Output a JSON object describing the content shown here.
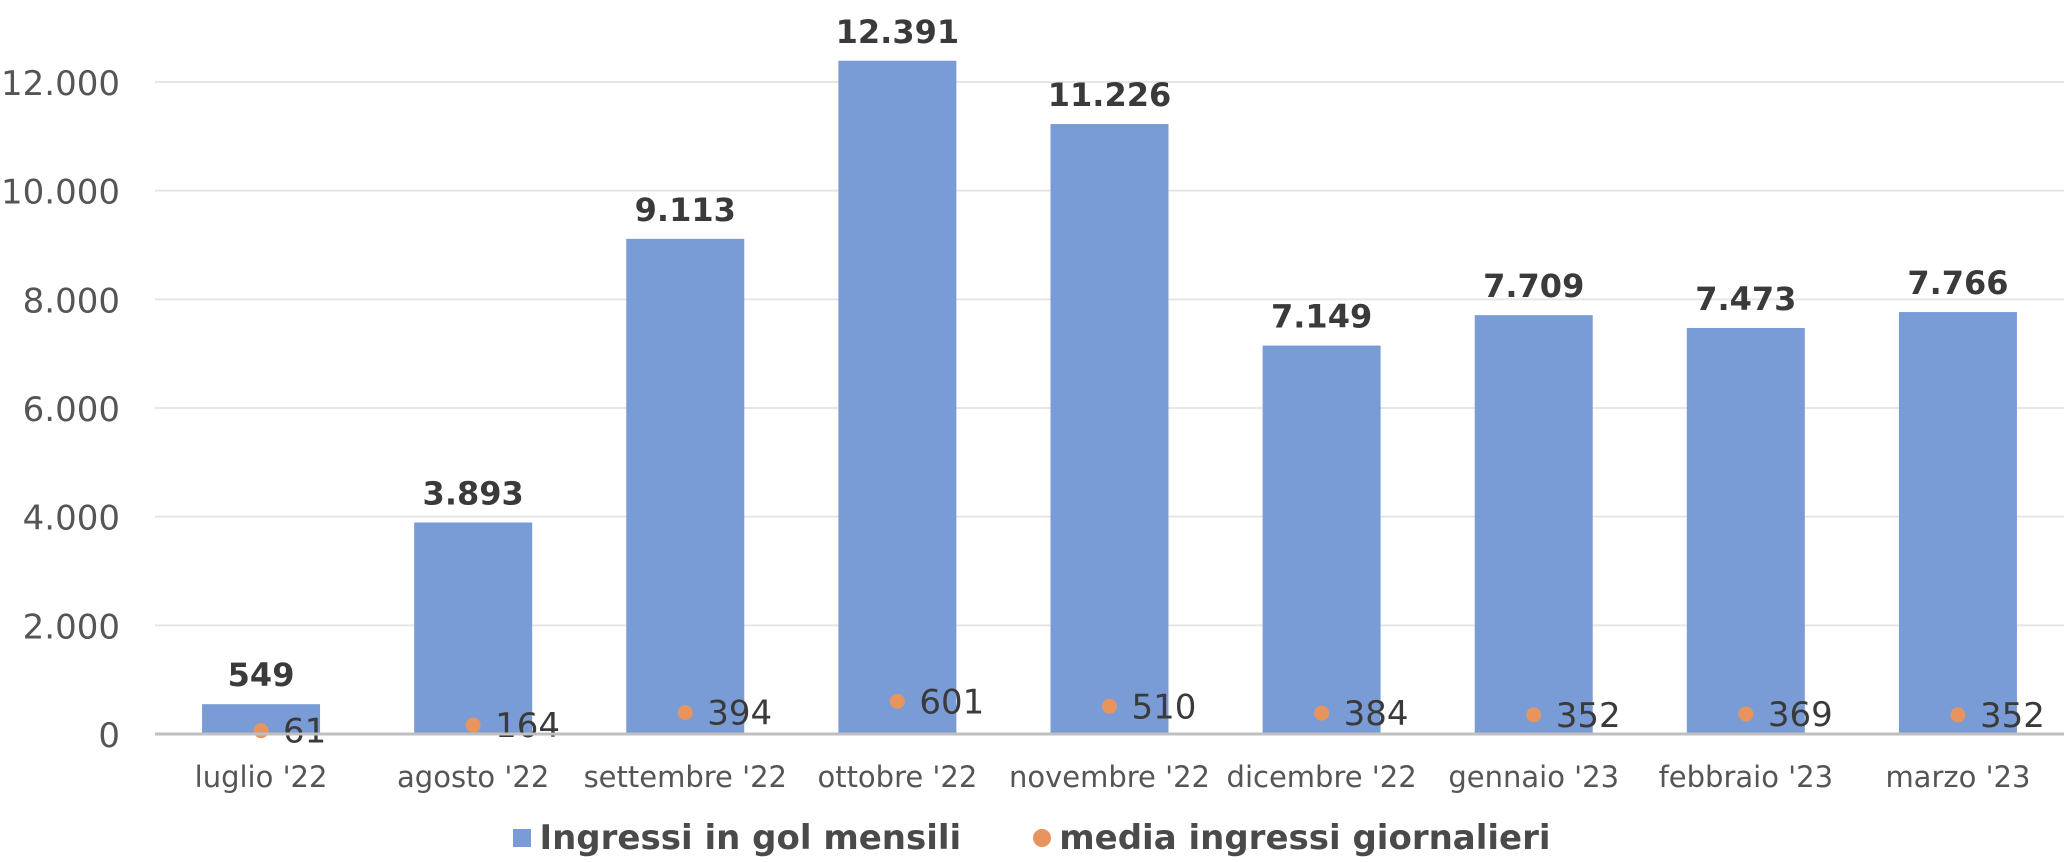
{
  "chart_data": {
    "type": "bar",
    "categories": [
      "luglio '22",
      "agosto '22",
      "settembre '22",
      "ottobre '22",
      "novembre '22",
      "dicembre '22",
      "gennaio '23",
      "febbraio '23",
      "marzo '23"
    ],
    "series": [
      {
        "name": "Ingressi in gol mensili",
        "type": "bar",
        "values": [
          549,
          3893,
          9113,
          12391,
          11226,
          7149,
          7709,
          7473,
          7766
        ],
        "labels": [
          "549",
          "3.893",
          "9.113",
          "12.391",
          "11.226",
          "7.149",
          "7.709",
          "7.473",
          "7.766"
        ],
        "color": "#7a9cd6"
      },
      {
        "name": "media ingressi giornalieri",
        "type": "scatter",
        "values": [
          61,
          164,
          394,
          601,
          510,
          384,
          352,
          369,
          352
        ],
        "labels": [
          "61",
          "164",
          "394",
          "601",
          "510",
          "384",
          "352",
          "369",
          "352"
        ],
        "color": "#e8945f"
      }
    ],
    "yticks": [
      0,
      2000,
      4000,
      6000,
      8000,
      10000,
      12000
    ],
    "ytick_labels": [
      "0",
      "2.000",
      "4.000",
      "6.000",
      "8.000",
      "10.000",
      "12.000"
    ],
    "ylim": [
      0,
      12000
    ],
    "grid": true,
    "legend_position": "bottom"
  }
}
